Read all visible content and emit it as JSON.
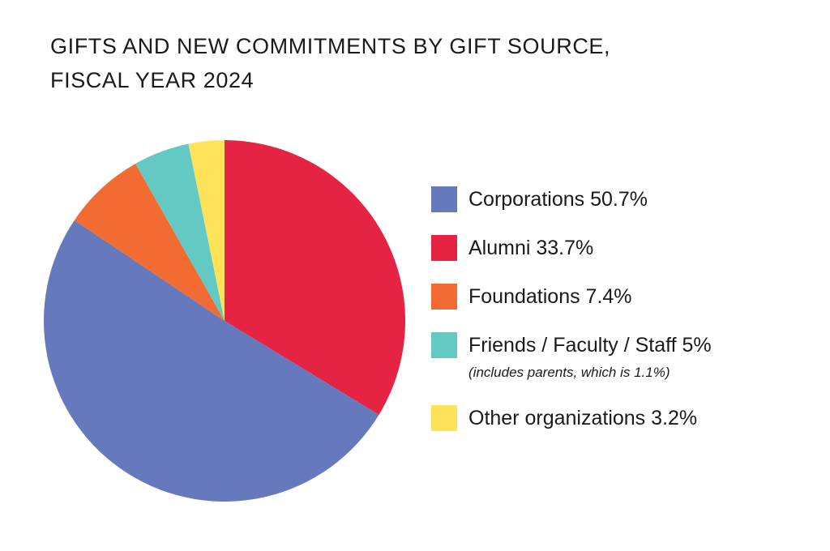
{
  "chart_data": {
    "type": "pie",
    "title_lines": [
      "GIFTS AND NEW COMMITMENTS BY GIFT SOURCE,",
      "FISCAL YEAR 2024"
    ],
    "slices": [
      {
        "name": "Alumni",
        "label": "Alumni 33.7%",
        "value": 33.7,
        "color": "#e42442"
      },
      {
        "name": "Corporations",
        "label": "Corporations 50.7%",
        "value": 50.7,
        "color": "#6679bc"
      },
      {
        "name": "Foundations",
        "label": "Foundations 7.4%",
        "value": 7.4,
        "color": "#f26b32"
      },
      {
        "name": "Friends / Faculty / Staff",
        "label": "Friends / Faculty / Staff 5%",
        "value": 5.0,
        "color": "#65c9c3",
        "note": "(includes parents, which is 1.1%)"
      },
      {
        "name": "Other organizations",
        "label": "Other organizations 3.2%",
        "value": 3.2,
        "color": "#fde25a"
      }
    ],
    "legend_order": [
      "Corporations",
      "Alumni",
      "Foundations",
      "Friends / Faculty / Staff",
      "Other organizations"
    ],
    "start": "12 o'clock",
    "direction": "clockwise"
  }
}
